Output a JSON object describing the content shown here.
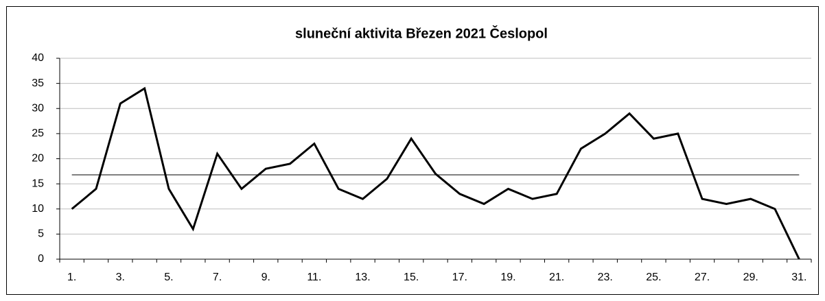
{
  "chart_data": {
    "type": "line",
    "title": "sluneční aktivita Březen 2021 Česlopol",
    "categories": [
      "1.",
      null,
      "3.",
      null,
      "5.",
      null,
      "7.",
      null,
      "9.",
      null,
      "11.",
      null,
      "13.",
      null,
      "15.",
      null,
      "17.",
      null,
      "19.",
      null,
      "21.",
      null,
      "23.",
      null,
      "25.",
      null,
      "27.",
      null,
      "29.",
      null,
      "31."
    ],
    "values": [
      10,
      14,
      31,
      34,
      14,
      6,
      21,
      14,
      18,
      19,
      23,
      14,
      12,
      16,
      24,
      17,
      13,
      11,
      14,
      12,
      13,
      22,
      25,
      29,
      24,
      25,
      12,
      11,
      12,
      10,
      0
    ],
    "color": "#000000",
    "reference_line": {
      "value": 16.8,
      "color": "#555555"
    },
    "ylim": [
      0,
      40
    ],
    "yticks": [
      0,
      5,
      10,
      15,
      20,
      25,
      30,
      35,
      40
    ],
    "grid": true
  }
}
